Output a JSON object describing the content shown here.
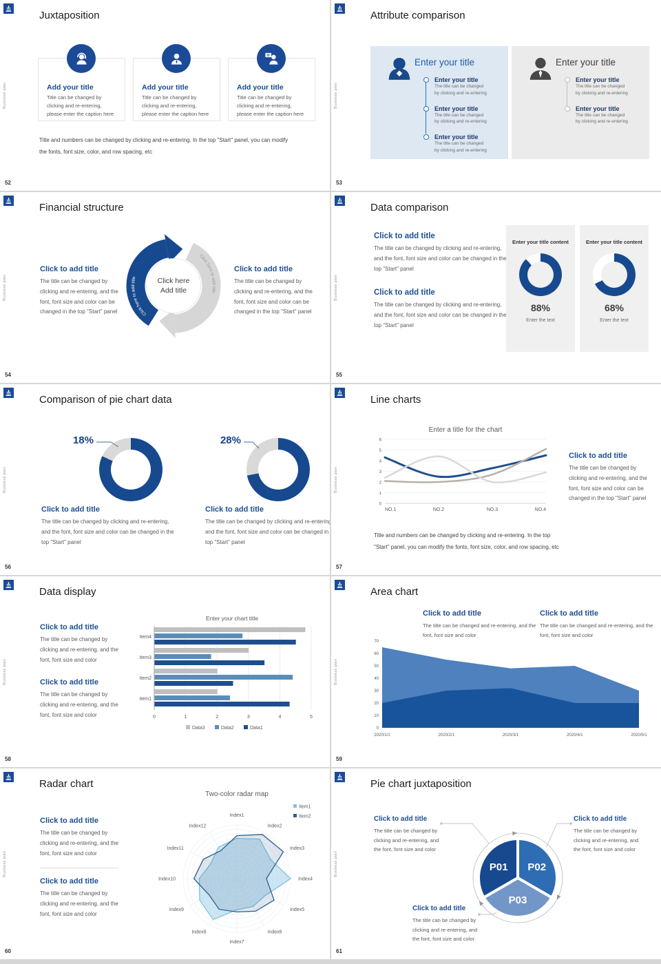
{
  "page": {
    "colors": {
      "primary_blue": "#17498F",
      "heading_blue": "#1d4f91",
      "mid_blue": "#2E6DB4",
      "steel_blue": "#5B8DB8",
      "light_blue_fill": "#7396C8",
      "track_gray": "#D9D9D9",
      "body_gray": "#595959"
    },
    "vertical_label": "Business plan"
  },
  "slides": {
    "s52": {
      "number": "52",
      "title": "Juxtaposition",
      "icons": [
        "support-agent-icon",
        "businessperson-icon",
        "presenter-icon"
      ],
      "cards": [
        {
          "title": "Add your title",
          "caption": "Title can be changed by clicking and re-entering, please enter the caption here"
        },
        {
          "title": "Add your title",
          "caption": "Title can be changed by clicking and re-entering, please enter the caption here"
        },
        {
          "title": "Add your title",
          "caption": "Title can be changed by clicking and re-entering, please enter the caption here"
        }
      ],
      "footnote_line1": "Title and numbers can be changed by clicking and re-entering. In the top \"Start\" panel, you can modify",
      "footnote_line2": "the fonts, font size, color, and row spacing, etc"
    },
    "s53": {
      "number": "53",
      "title": "Attribute comparison",
      "left_panel": {
        "icon": "female-user-icon",
        "heading": "Enter your title",
        "items": [
          {
            "title": "Enter your title",
            "caption_line1": "The title can be changed",
            "caption_line2": "by clicking and re-entering"
          },
          {
            "title": "Enter your title",
            "caption_line1": "The title can be changed",
            "caption_line2": "by clicking and re-entering"
          },
          {
            "title": "Enter your title",
            "caption_line1": "The title can be changed",
            "caption_line2": "by clicking and re-entering"
          }
        ]
      },
      "right_panel": {
        "icon": "male-user-icon",
        "heading": "Enter your title",
        "items": [
          {
            "title": "Enter your title",
            "caption_line1": "The title can be changed",
            "caption_line2": "by clicking and re-entering"
          },
          {
            "title": "Enter your title",
            "caption_line1": "The title can be changed",
            "caption_line2": "by clicking and re-entering"
          }
        ]
      }
    },
    "s54": {
      "number": "54",
      "title": "Financial structure",
      "left_block": {
        "heading": "Click to add title",
        "body": "The title can be changed by clicking and re-entering, and the font, font size and color can be changed in the top \"Start\" panel"
      },
      "right_block": {
        "heading": "Click to add title",
        "body": "The title can be changed by clicking and re-entering, and the font, font size and color can be changed in the top \"Start\" panel"
      },
      "ring": {
        "arc_label_left": "Click here to add title",
        "arc_label_right": "Click here to add title",
        "center_line1": "Click here",
        "center_line2": "Add title"
      }
    },
    "s55": {
      "number": "55",
      "title": "Data comparison",
      "blocks": [
        {
          "heading": "Click to add title",
          "body": "The title can be changed by clicking and re-entering, and the font, font size and color can be changed in the top \"Start\" panel"
        },
        {
          "heading": "Click to add title",
          "body": "The title can be changed by clicking and re-entering, and the font, font size and color can be changed in the top \"Start\" panel"
        }
      ],
      "cards": [
        {
          "title": "Enter your title content",
          "value": 88,
          "percent_label": "88%",
          "caption": "Enter the text"
        },
        {
          "title": "Enter your title content",
          "value": 68,
          "percent_label": "68%",
          "caption": "Enter the text"
        }
      ]
    },
    "s56": {
      "number": "56",
      "title": "Comparison of pie chart data",
      "charts": [
        {
          "label": "18%",
          "gray_percent": 18
        },
        {
          "label": "28%",
          "gray_percent": 28
        }
      ],
      "blocks": [
        {
          "heading": "Click to add title",
          "body": "The title can be changed by clicking and re-entering, and the font, font size and color can be changed in the top \"Start\" panel"
        },
        {
          "heading": "Click to add title",
          "body": "The title can be changed by clicking and re-entering, and the font, font size and color can be changed in the top \"Start\" panel"
        }
      ]
    },
    "s57": {
      "number": "57",
      "title": "Line charts",
      "chart_data": {
        "type": "line",
        "title": "Enter a title for the chart",
        "x": [
          "NO.1",
          "NO.2",
          "NO.3",
          "NO.4"
        ],
        "ylim": [
          0,
          6
        ],
        "yticks": [
          0,
          1,
          2,
          3,
          4,
          5,
          6
        ],
        "series": [
          {
            "name": "blue",
            "color": "#1F4E8C",
            "width": 3,
            "values": [
              4.3,
              2.5,
              3.3,
              4.5
            ]
          },
          {
            "name": "tan-gray",
            "color": "#B5B1AA",
            "width": 2.5,
            "values": [
              2.1,
              2.0,
              2.7,
              5.1
            ]
          },
          {
            "name": "light-gray",
            "color": "#D8D8D8",
            "width": 2.5,
            "values": [
              2.4,
              4.4,
              2.0,
              2.9
            ]
          }
        ]
      },
      "block": {
        "heading": "Click to add title",
        "body": "The title can be changed by clicking and re-entering, and the font, font size and color can be changed in the top \"Start\" panel"
      },
      "footnote_line1": "Title and numbers can be changed by clicking and re-entering. In the top",
      "footnote_line2": "\"Start\" panel, you can modify the fonts, font size, color, and row spacing, etc"
    },
    "s58": {
      "number": "58",
      "title": "Data display",
      "blocks": [
        {
          "heading": "Click to add title",
          "body": "The title can be changed by clicking and re-entering, and the font, font size and color"
        },
        {
          "heading": "Click to add title",
          "body": "The title can be changed by clicking and re-entering, and the font, font size and color"
        }
      ],
      "chart_data": {
        "type": "bar",
        "orientation": "horizontal",
        "title": "Enter your chart title",
        "categories": [
          "Item1",
          "Item2",
          "Item3",
          "Item4"
        ],
        "xlim": [
          0,
          5
        ],
        "xticks": [
          0,
          1,
          2,
          3,
          4,
          5
        ],
        "series": [
          {
            "name": "Data1",
            "color": "#1F4E8C",
            "values": [
              4.3,
              2.5,
              3.5,
              4.5
            ]
          },
          {
            "name": "Data2",
            "color": "#5B8DB8",
            "values": [
              2.4,
              4.4,
              1.8,
              2.8
            ]
          },
          {
            "name": "Data3",
            "color": "#BFBFBF",
            "values": [
              2.0,
              2.0,
              3.0,
              4.8
            ]
          }
        ],
        "legend_order": [
          "Data3",
          "Data2",
          "Data1"
        ]
      }
    },
    "s59": {
      "number": "59",
      "title": "Area chart",
      "blocks": [
        {
          "heading": "Click to add title",
          "body": "The title can be changed and re-entering, and the font, font size and color"
        },
        {
          "heading": "Click to add title",
          "body": "The title can be changed and re-entering, and the font, font size and color"
        }
      ],
      "chart_data": {
        "type": "area",
        "x": [
          "2020/1/1",
          "2020/2/1",
          "2020/3/1",
          "2020/4/1",
          "2020/5/1"
        ],
        "ylim": [
          0,
          70
        ],
        "yticks": [
          0,
          10,
          20,
          30,
          40,
          50,
          60,
          70
        ],
        "series": [
          {
            "name": "upper",
            "color": "#4E81BD",
            "values": [
              65,
              55,
              48,
              50,
              30
            ]
          },
          {
            "name": "lower",
            "color": "#17549B",
            "values": [
              20,
              30,
              32,
              20,
              20
            ]
          }
        ]
      }
    },
    "s60": {
      "number": "60",
      "title": "Radar chart",
      "blocks": [
        {
          "heading": "Click to add title",
          "body": "The title can be changed by clicking and re-entering, and the font, font size and color"
        },
        {
          "heading": "Click to add title",
          "body": "The title can be changed by clicking and re-entering, and the font, font size and color"
        }
      ],
      "chart_data": {
        "type": "radar",
        "title": "Two-color radar map",
        "axes": [
          "Index1",
          "Index2",
          "Index3",
          "Index4",
          "Index5",
          "Index6",
          "Index7",
          "Index8",
          "Index9",
          "Index10",
          "Index11",
          "Index12"
        ],
        "rmax": 1,
        "legend": [
          "Item1",
          "Item2"
        ],
        "series": [
          {
            "name": "Item1",
            "color": "#7EC4E0",
            "fill": "rgba(158,205,232,0.5)",
            "values": [
              0.75,
              0.85,
              0.72,
              1.0,
              0.62,
              0.6,
              0.58,
              0.88,
              0.8,
              0.7,
              0.56,
              0.68
            ]
          },
          {
            "name": "Item2",
            "color": "#2E5E8C",
            "fill": "rgba(46,94,140,0.15)",
            "values": [
              0.8,
              0.95,
              1.0,
              0.55,
              0.8,
              0.7,
              0.62,
              0.66,
              0.6,
              0.8,
              0.72,
              0.6
            ]
          }
        ]
      }
    },
    "s61": {
      "number": "61",
      "title": "Pie chart juxtaposition",
      "chart_data": {
        "type": "pie",
        "segments": [
          {
            "label": "P01",
            "color": "#17498F",
            "value": 33.3
          },
          {
            "label": "P02",
            "color": "#2E6DB4",
            "value": 33.3
          },
          {
            "label": "P03",
            "color": "#7396C8",
            "value": 33.3
          }
        ]
      },
      "blocks": [
        {
          "heading": "Click to add title",
          "body": "The title can be changed by clicking and re-entering, and the font, font size and color"
        },
        {
          "heading": "Click to add title",
          "body": "The title can be changed by clicking and re-entering, and the font, font size and color"
        },
        {
          "heading": "Click to add title",
          "body": "The title can be changed by clicking and re-entering, and the font, font size and color"
        }
      ]
    }
  }
}
